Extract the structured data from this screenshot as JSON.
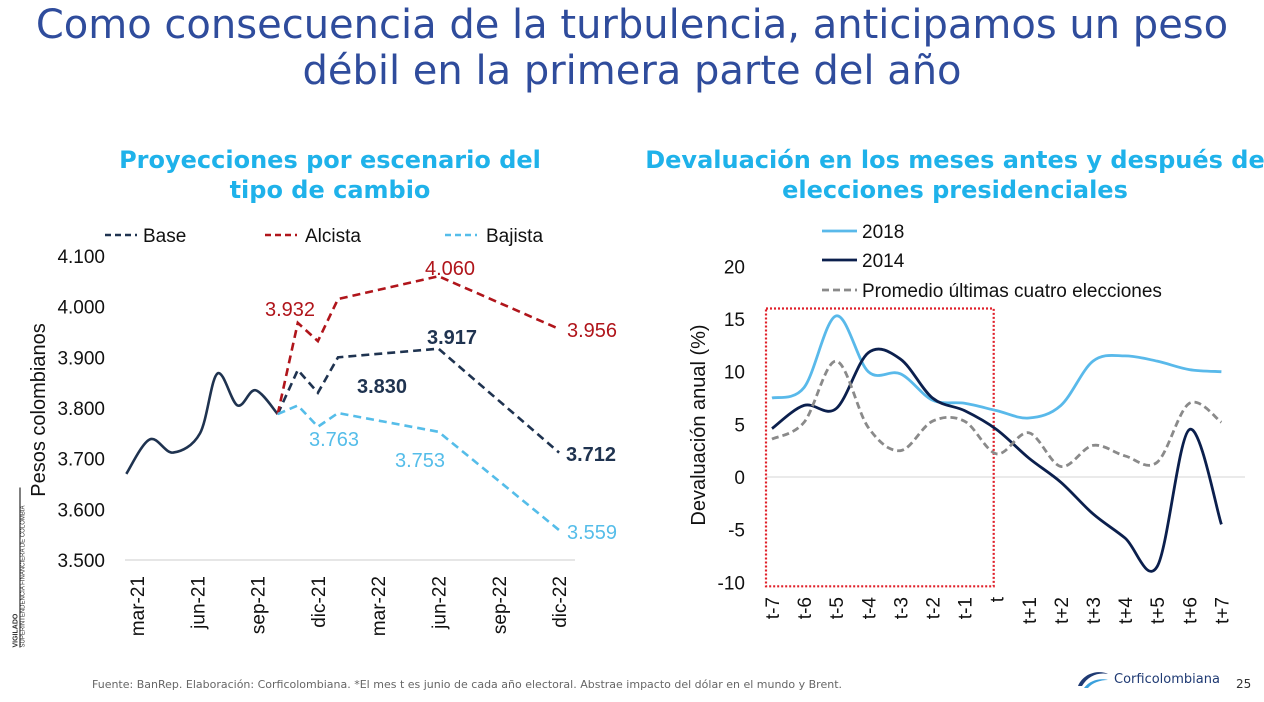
{
  "title": "Como consecuencia de la turbulencia, anticipamos un peso débil en la primera parte del año",
  "vigilado": {
    "label": "VIGILADO",
    "entity": "SUPERINTENDENCIA FINANCIERA DE COLOMBIA"
  },
  "footer": {
    "source": "Fuente:  BanRep. Elaboración: Corficolombiana. *El mes t es junio de cada año electoral. Abstrae impacto del dólar en el mundo y Brent.",
    "brand": "Corficolombiana",
    "page": "25"
  },
  "chart_data": [
    {
      "type": "line",
      "title": "Proyecciones por escenario del tipo de cambio",
      "ylabel": "Pesos colombianos",
      "ylim": [
        3500,
        4100
      ],
      "yticks": [
        "4.100",
        "4.000",
        "3.900",
        "3.800",
        "3.700",
        "3.600",
        "3.500"
      ],
      "ytick_values": [
        4100,
        4000,
        3900,
        3800,
        3700,
        3600,
        3500
      ],
      "xticks": [
        "mar-21",
        "jun-21",
        "sep-21",
        "dic-21",
        "mar-22",
        "jun-22",
        "sep-22",
        "dic-22"
      ],
      "xtick_dates": [
        "2021-03",
        "2021-06",
        "2021-09",
        "2021-12",
        "2022-03",
        "2022-06",
        "2022-09",
        "2022-12"
      ],
      "legend": "top",
      "series": [
        {
          "name": "Base",
          "style": "dashed",
          "color": "#1f3350",
          "history": [
            [
              "2021-02-15",
              3670
            ],
            [
              "2021-03-20",
              3738
            ],
            [
              "2021-04-25",
              3712
            ],
            [
              "2021-06-05",
              3750
            ],
            [
              "2021-07-01",
              3868
            ],
            [
              "2021-08-01",
              3805
            ],
            [
              "2021-08-28",
              3835
            ],
            [
              "2021-10-01",
              3788
            ]
          ],
          "points": [
            [
              "2021-10-01",
              3788
            ],
            [
              "2021-11-01",
              3875
            ],
            [
              "2021-12-01",
              3830
            ],
            [
              "2022-01-01",
              3900
            ],
            [
              "2022-06-01",
              3917
            ],
            [
              "2022-12-01",
              3712
            ]
          ],
          "labels": [
            {
              "date": "2021-12-01",
              "text": "3.830"
            },
            {
              "date": "2022-06-01",
              "text": "3.917"
            },
            {
              "date": "2022-12-01",
              "text": "3.712"
            }
          ]
        },
        {
          "name": "Alcista",
          "style": "dashed",
          "color": "#b0151b",
          "points": [
            [
              "2021-10-01",
              3788
            ],
            [
              "2021-11-01",
              3968
            ],
            [
              "2021-12-01",
              3932
            ],
            [
              "2022-01-01",
              4015
            ],
            [
              "2022-06-01",
              4060
            ],
            [
              "2022-12-01",
              3956
            ]
          ],
          "labels": [
            {
              "date": "2021-12-01",
              "text": "3.932"
            },
            {
              "date": "2022-06-01",
              "text": "4.060"
            },
            {
              "date": "2022-12-01",
              "text": "3.956"
            }
          ]
        },
        {
          "name": "Bajista",
          "style": "dashed",
          "color": "#55bde9",
          "points": [
            [
              "2021-10-01",
              3788
            ],
            [
              "2021-11-01",
              3805
            ],
            [
              "2021-12-01",
              3763
            ],
            [
              "2022-01-01",
              3790
            ],
            [
              "2022-06-01",
              3753
            ],
            [
              "2022-12-01",
              3559
            ]
          ],
          "labels": [
            {
              "date": "2021-12-01",
              "text": "3.763"
            },
            {
              "date": "2022-06-01",
              "text": "3.753"
            },
            {
              "date": "2022-12-01",
              "text": "3.559"
            }
          ]
        }
      ]
    },
    {
      "type": "line",
      "title": "Devaluación en los meses antes y después de elecciones presidenciales",
      "ylabel": "Devaluación anual (%)",
      "ylim": [
        -10,
        20
      ],
      "yticks": [
        "20",
        "15",
        "10",
        "5",
        "0",
        "-5",
        "-10"
      ],
      "ytick_values": [
        20,
        15,
        10,
        5,
        0,
        -5,
        -10
      ],
      "categories": [
        "t-7",
        "t-6",
        "t-5",
        "t-4",
        "t-3",
        "t-2",
        "t-1",
        "t",
        "t+1",
        "t+2",
        "t+3",
        "t+4",
        "t+5",
        "t+6",
        "t+7"
      ],
      "highlight": {
        "from": "t-7",
        "to": "t",
        "y_from": -10,
        "y_to": 16,
        "color": "#e0202a",
        "style": "dotted"
      },
      "legend": "top",
      "series": [
        {
          "name": "2018",
          "style": "solid",
          "color": "#59b9ea",
          "values": [
            7.5,
            8.5,
            15.3,
            10.0,
            9.8,
            7.3,
            7.0,
            6.3,
            5.6,
            6.8,
            11.0,
            11.5,
            11.0,
            10.2,
            10.0
          ]
        },
        {
          "name": "2014",
          "style": "solid",
          "color": "#0b1f4d",
          "values": [
            4.6,
            6.8,
            6.5,
            11.8,
            11.2,
            7.5,
            6.3,
            4.5,
            1.8,
            -0.5,
            -3.5,
            -5.8,
            -8.5,
            4.5,
            -4.5
          ]
        },
        {
          "name": "Promedio últimas cuatro elecciones",
          "style": "dashed",
          "color": "#8a8a8a",
          "values": [
            3.6,
            5.2,
            11.0,
            4.7,
            2.5,
            5.3,
            5.3,
            2.2,
            4.2,
            1.0,
            3.0,
            2.0,
            1.4,
            7.0,
            5.2
          ]
        }
      ]
    }
  ]
}
